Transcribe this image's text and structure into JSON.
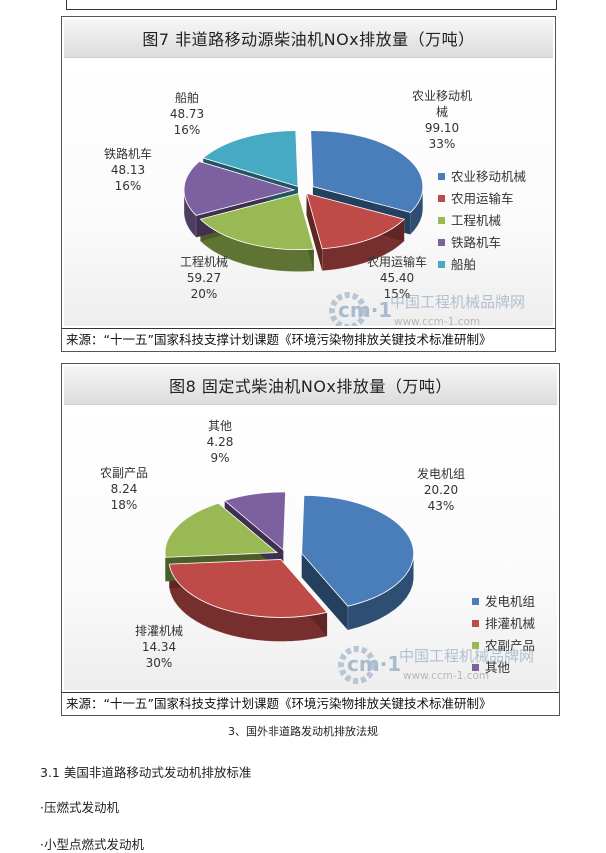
{
  "figures": [
    {
      "title": "图7  非道路移动源柴油机NOx排放量（万吨）",
      "source": "来源：“十一五”国家科技支撑计划课题《环境污染物排放关键技术标准研制》",
      "watermark": {
        "text": "中国工程机械品牌网",
        "url": "www.ccm-1.com",
        "logo": "cm·1"
      },
      "chart_data": {
        "type": "pie",
        "title": "图7  非道路移动源柴油机NOx排放量（万吨）",
        "legend_position": "right",
        "slices": [
          {
            "name": "农业移动机械",
            "label_lines": [
              "农业移动机",
              "械",
              "99.10",
              "33%"
            ],
            "value": 99.1,
            "percent": 33,
            "color": "#4a7ebb"
          },
          {
            "name": "农用运输车",
            "label_lines": [
              "农用运输车",
              "45.40",
              "15%"
            ],
            "value": 45.4,
            "percent": 15,
            "color": "#be4b48"
          },
          {
            "name": "工程机械",
            "label_lines": [
              "工程机械",
              "59.27",
              "20%"
            ],
            "value": 59.27,
            "percent": 20,
            "color": "#98b954"
          },
          {
            "name": "铁路机车",
            "label_lines": [
              "铁路机车",
              "48.13",
              "16%"
            ],
            "value": 48.13,
            "percent": 16,
            "color": "#7d60a0"
          },
          {
            "name": "船舶",
            "label_lines": [
              "船舶",
              "48.73",
              "16%"
            ],
            "value": 48.73,
            "percent": 16,
            "color": "#46aac4"
          }
        ]
      }
    },
    {
      "title": "图8  固定式柴油机NOx排放量（万吨）",
      "source": "来源：“十一五”国家科技支撑计划课题《环境污染物排放关键技术标准研制》",
      "watermark": {
        "text": "中国工程机械品牌网",
        "url": "www.ccm-1.com",
        "logo": "cm·1"
      },
      "chart_data": {
        "type": "pie",
        "title": "图8  固定式柴油机NOx排放量（万吨）",
        "legend_position": "bottom-right",
        "slices": [
          {
            "name": "发电机组",
            "label_lines": [
              "发电机组",
              "20.20",
              "43%"
            ],
            "value": 20.2,
            "percent": 43,
            "color": "#4a7ebb"
          },
          {
            "name": "排灌机械",
            "label_lines": [
              "排灌机械",
              "14.34",
              "30%"
            ],
            "value": 14.34,
            "percent": 30,
            "color": "#be4b48"
          },
          {
            "name": "农副产品",
            "label_lines": [
              "农副产品",
              "8.24",
              "18%"
            ],
            "value": 8.24,
            "percent": 18,
            "color": "#98b954"
          },
          {
            "name": "其他",
            "label_lines": [
              "其他",
              "4.28",
              "9%"
            ],
            "value": 4.28,
            "percent": 9,
            "color": "#7d60a0"
          }
        ]
      }
    }
  ],
  "caption": "3、国外非道路发动机排放法规",
  "section_heading": "3.1 美国非道路移动式发动机排放标准",
  "bullets": [
    "·压燃式发动机",
    "·小型点燃式发动机"
  ]
}
